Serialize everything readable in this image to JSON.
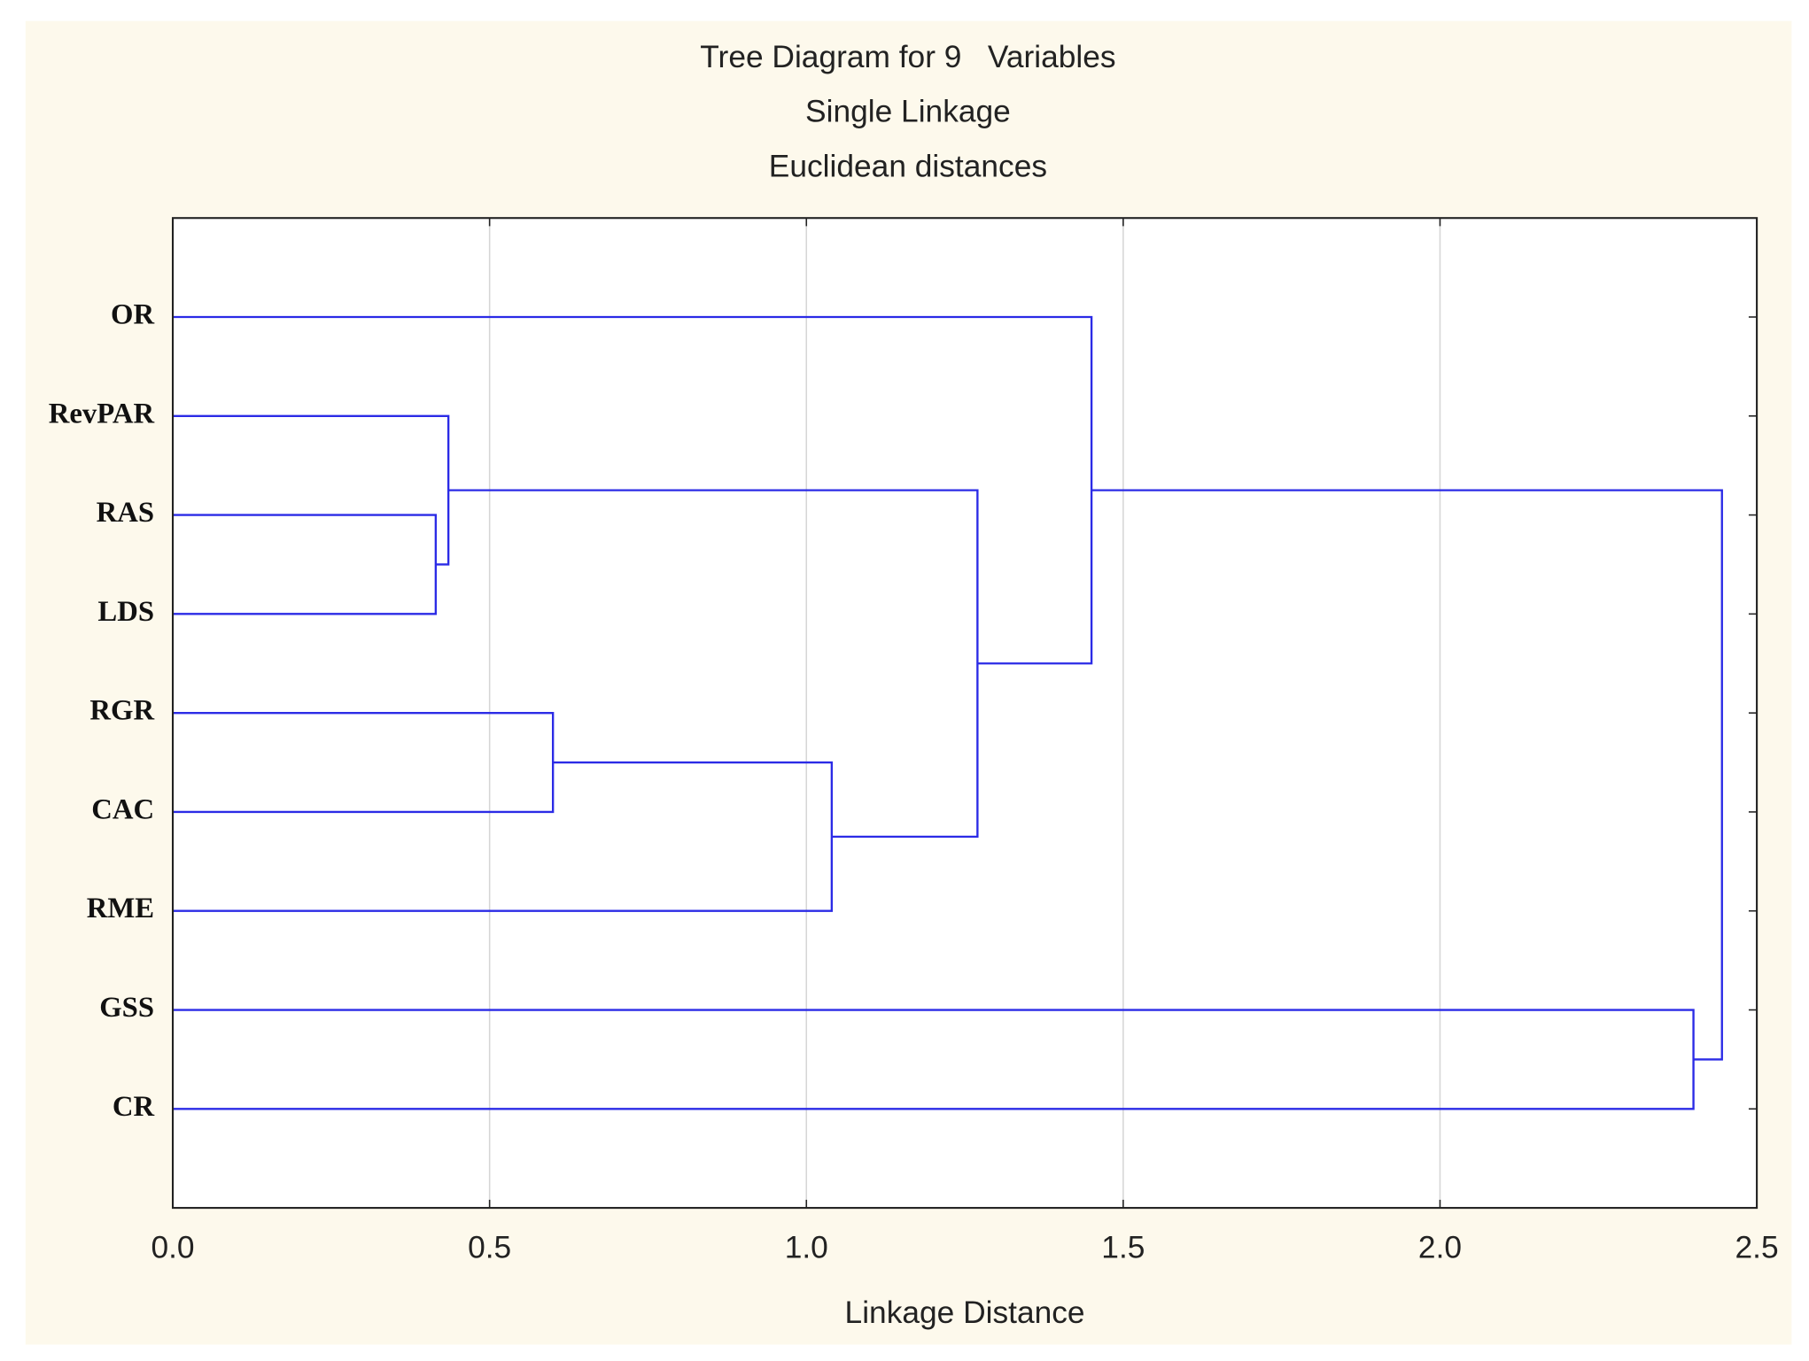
{
  "chart_data": {
    "type": "dendrogram",
    "title": [
      "Tree Diagram for 9   Variables",
      "Single Linkage",
      "Euclidean distances"
    ],
    "x_label": "Linkage Distance",
    "xlim": [
      0,
      2.5
    ],
    "xticks": [
      {
        "value": 0,
        "label": "0.0"
      },
      0.5,
      {
        "value": 1,
        "label": "1.0"
      },
      1.5,
      {
        "value": 2,
        "label": "2.0"
      },
      2.5
    ],
    "grid": true,
    "color": "#2b2be6",
    "tree": {
      "height": 2.445,
      "children": [
        {
          "height": 1.45,
          "children": [
            "OR",
            {
              "height": 1.27,
              "children": [
                {
                  "height": 0.435,
                  "children": [
                    "RevPAR",
                    {
                      "height": 0.415,
                      "children": [
                        "RAS",
                        "LDS"
                      ]
                    }
                  ]
                },
                {
                  "height": 1.04,
                  "children": [
                    {
                      "height": 0.6,
                      "children": [
                        "RGR",
                        "CAC"
                      ]
                    },
                    "RME"
                  ]
                }
              ]
            }
          ]
        },
        {
          "height": 2.4,
          "children": [
            "GSS",
            "CR"
          ]
        }
      ]
    }
  }
}
